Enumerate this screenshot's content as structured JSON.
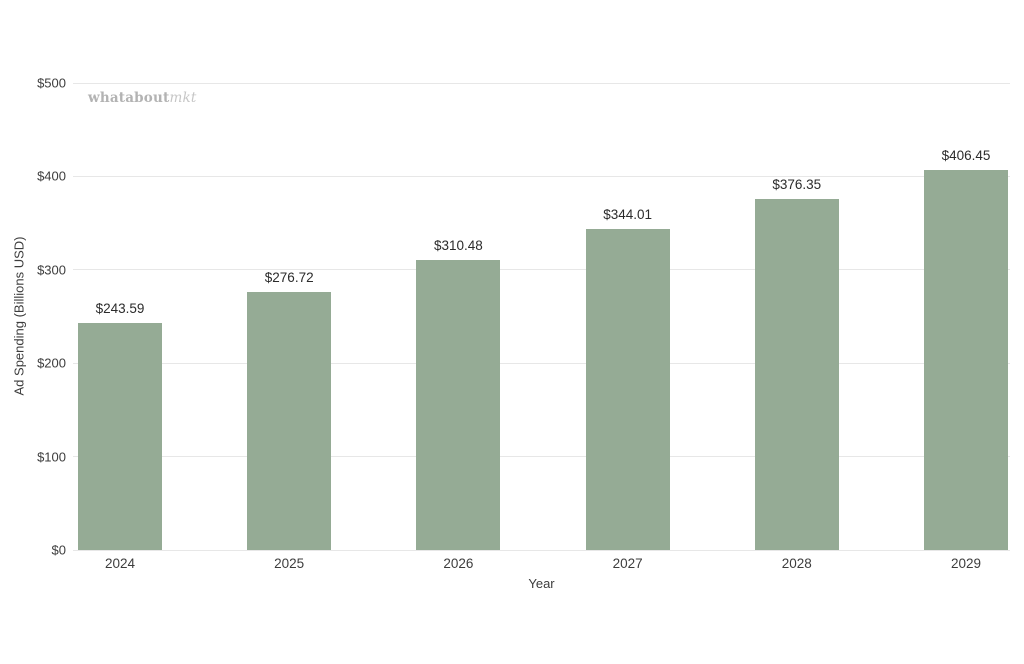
{
  "watermark": {
    "bold_part": "whatabout",
    "italic_part": "mkt"
  },
  "chart_data": {
    "type": "bar",
    "categories": [
      "2024",
      "2025",
      "2026",
      "2027",
      "2028",
      "2029"
    ],
    "values": [
      243.59,
      276.72,
      310.48,
      344.01,
      376.35,
      406.45
    ],
    "value_labels": [
      "$243.59",
      "$276.72",
      "$310.48",
      "$344.01",
      "$376.35",
      "$406.45"
    ],
    "title": "",
    "xlabel": "Year",
    "ylabel": "Ad Spending (Billions USD)",
    "ylim": [
      0,
      500
    ],
    "ytick_step": 100,
    "ytick_labels": [
      "$0",
      "$100",
      "$200",
      "$300",
      "$400",
      "$500"
    ],
    "grid": true,
    "legend": false,
    "bar_color": "#95ab95",
    "gridline_color": "#e7e7e7"
  }
}
